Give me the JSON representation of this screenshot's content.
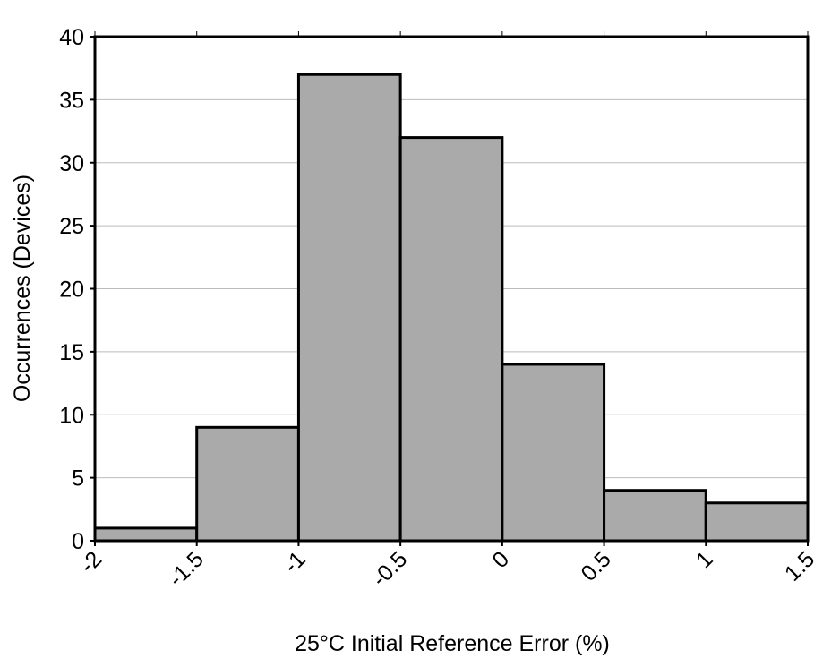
{
  "chart_data": {
    "type": "bar",
    "subtype": "histogram",
    "title": "",
    "xlabel": "25°C Initial Reference Error (%)",
    "ylabel": "Occurrences (Devices)",
    "bin_edges": [
      -2,
      -1.5,
      -1,
      -0.5,
      0,
      0.5,
      1,
      1.5
    ],
    "values": [
      1,
      9,
      37,
      32,
      14,
      4,
      3
    ],
    "xlim": [
      -2,
      1.5
    ],
    "ylim": [
      0,
      40
    ],
    "x_ticks": [
      "-2",
      "-1.5",
      "-1",
      "-0.5",
      "0",
      "0.5",
      "1",
      "1.5"
    ],
    "y_ticks": [
      "0",
      "5",
      "10",
      "15",
      "20",
      "25",
      "30",
      "35",
      "40"
    ],
    "y_tick_values": [
      0,
      5,
      10,
      15,
      20,
      25,
      30,
      35,
      40
    ],
    "grid": "horizontal",
    "legend": "none",
    "colors": {
      "bar_fill": "#aaaaaa",
      "bar_stroke": "#000000",
      "grid": "#bbbbbb",
      "frame": "#000000"
    }
  }
}
